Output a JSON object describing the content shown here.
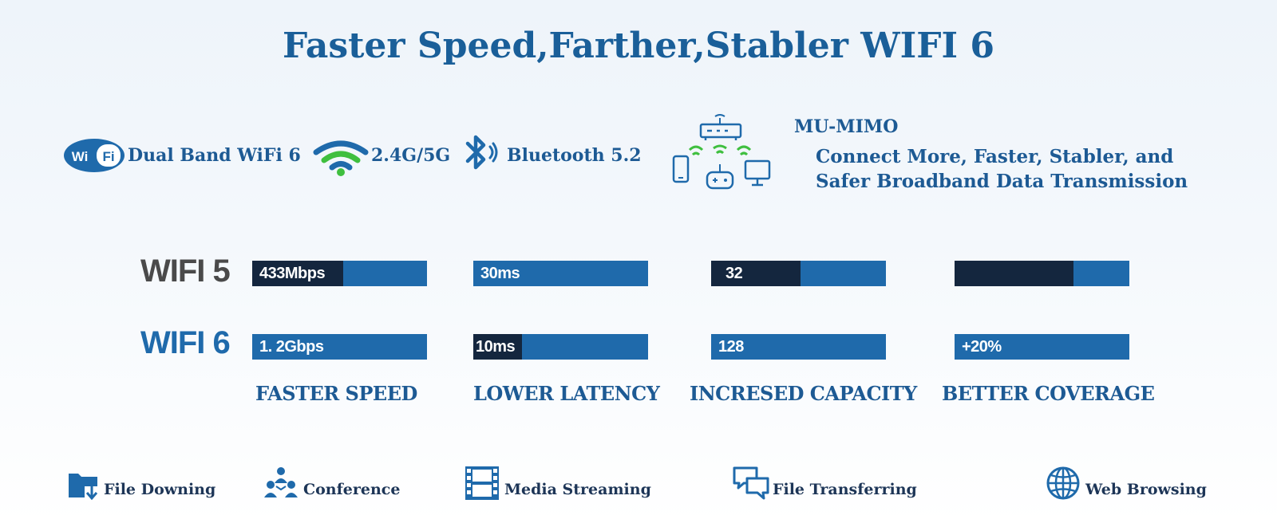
{
  "title": "Faster Speed,Farther,Stabler WIFI 6",
  "features": {
    "wifi_badge": {
      "left": "Wi",
      "right": "Fi"
    },
    "dual_band": "Dual Band WiFi 6",
    "band": "2.4G/5G",
    "bluetooth": "Bluetooth 5.2",
    "mimo_title": "MU-MIMO",
    "mimo_desc_line1": "Connect More, Faster, Stabler, and",
    "mimo_desc_line2": "Safer Broadband Data Transmission"
  },
  "comparison": {
    "rows": [
      {
        "label": "WIFI 5",
        "color": "#4a4a4a"
      },
      {
        "label": "WIFI 6",
        "color": "#1f6aab"
      }
    ],
    "categories": [
      "FASTER SPEED",
      "LOWER LATENCY",
      "INCRESED CAPACITY",
      "BETTER  COVERAGE"
    ],
    "wifi5": [
      {
        "text": "433Mbps",
        "fill": 0.52
      },
      {
        "text": "30ms",
        "fill": 0
      },
      {
        "text": "32",
        "fill": 0.51
      },
      {
        "text": "",
        "fill": 0.68
      }
    ],
    "wifi6": [
      {
        "text": "1. 2Gbps",
        "fill": 0
      },
      {
        "text": "10ms",
        "fill": 0.28
      },
      {
        "text": "128",
        "fill": 0
      },
      {
        "text": "+20%",
        "fill": 0
      }
    ],
    "colors": {
      "bar": "#1f6aab",
      "fill": "#14263e"
    }
  },
  "applications": [
    "File Downing",
    "Conference",
    "Media Streaming",
    "File Transferring",
    "Web Browsing"
  ]
}
